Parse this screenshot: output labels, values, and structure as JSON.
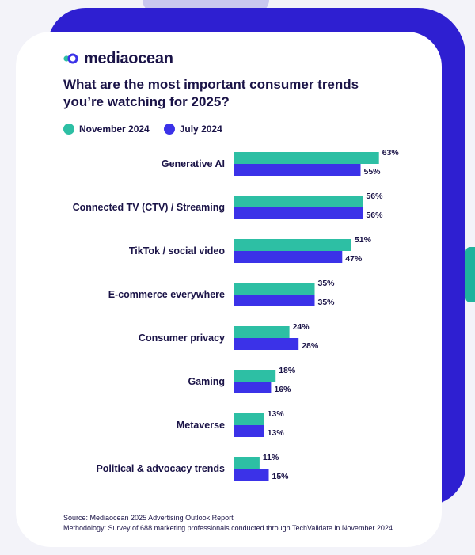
{
  "brand": {
    "name": "mediaocean"
  },
  "colors": {
    "november": "#2dbfa4",
    "july": "#3b32e8",
    "text": "#1a1347"
  },
  "chart_data": {
    "type": "bar",
    "orientation": "horizontal",
    "title": "What are the most important consumer trends you’re watching for 2025?",
    "categories": [
      "Generative AI",
      "Connected TV (CTV) / Streaming",
      "TikTok / social video",
      "E-commerce everywhere",
      "Consumer privacy",
      "Gaming",
      "Metaverse",
      "Political & advocacy trends"
    ],
    "series": [
      {
        "name": "November 2024",
        "values": [
          63,
          56,
          51,
          35,
          24,
          18,
          13,
          11
        ]
      },
      {
        "name": "July 2024",
        "values": [
          55,
          56,
          47,
          35,
          28,
          16,
          13,
          15
        ]
      }
    ],
    "value_suffix": "%",
    "legend_position": "top-left",
    "grid": false
  },
  "footer": {
    "source": "Source: Mediaocean 2025 Advertising Outlook Report",
    "methodology": "Methodology: Survey of 688 marketing professionals conducted through TechValidate in November 2024"
  }
}
